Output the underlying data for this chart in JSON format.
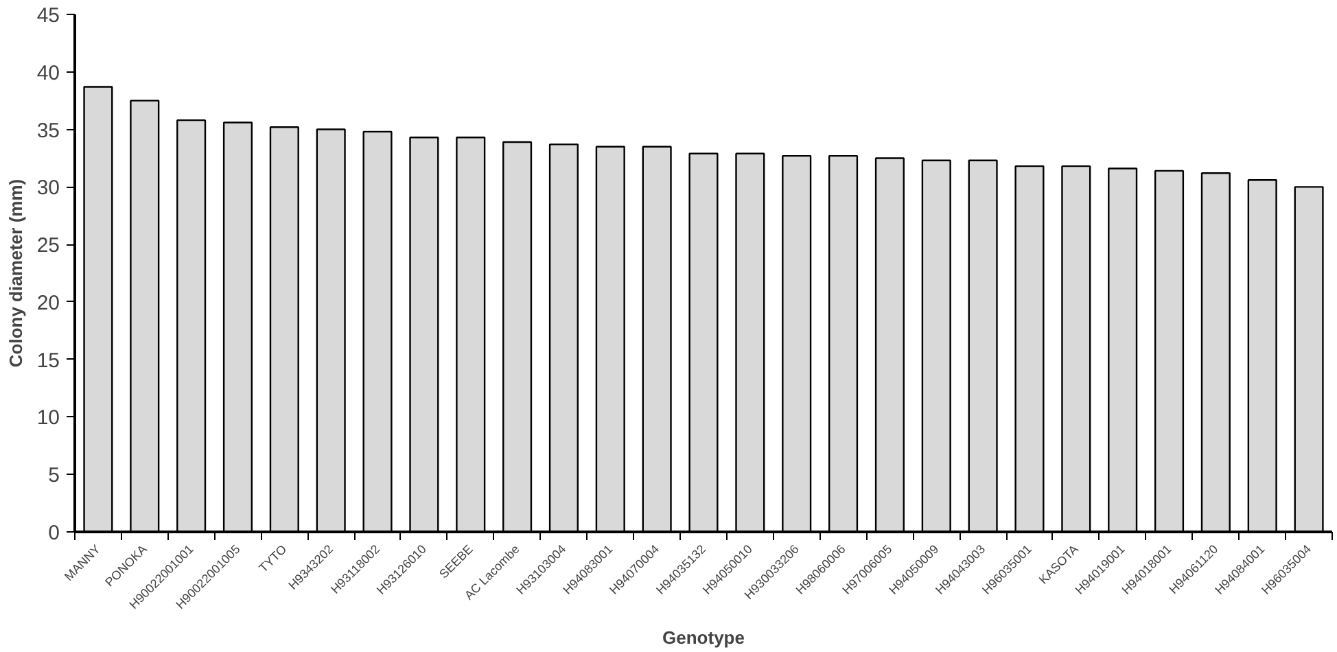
{
  "chart_data": {
    "type": "bar",
    "xlabel": "Genotype",
    "ylabel": "Colony diameter (mm)",
    "categories": [
      "MANNY",
      "PONOKA",
      "H90022001001",
      "H90022001005",
      "TYTO",
      "H9343202",
      "H93118002",
      "H93126010",
      "SEEBE",
      "AC Lacombe",
      "H93103004",
      "H94083001",
      "H94070004",
      "H94035132",
      "H94050010",
      "H930033206",
      "H98060006",
      "H97006005",
      "H94050009",
      "H94043003",
      "H96035001",
      "KASOTA",
      "H94019001",
      "H94018001",
      "H94061120",
      "H94084001",
      "H96035004"
    ],
    "values": [
      38.7,
      37.5,
      35.8,
      35.6,
      35.2,
      35.0,
      34.8,
      34.3,
      34.3,
      33.9,
      33.7,
      33.5,
      33.5,
      32.9,
      32.9,
      32.7,
      32.7,
      32.5,
      32.3,
      32.3,
      31.8,
      31.8,
      31.6,
      31.4,
      31.2,
      30.6,
      30.0
    ],
    "color": "#d9d9d9",
    "ylim": [
      0,
      45
    ],
    "yticks": [
      0,
      5,
      10,
      15,
      20,
      25,
      30,
      35,
      40,
      45
    ],
    "grid": false
  }
}
